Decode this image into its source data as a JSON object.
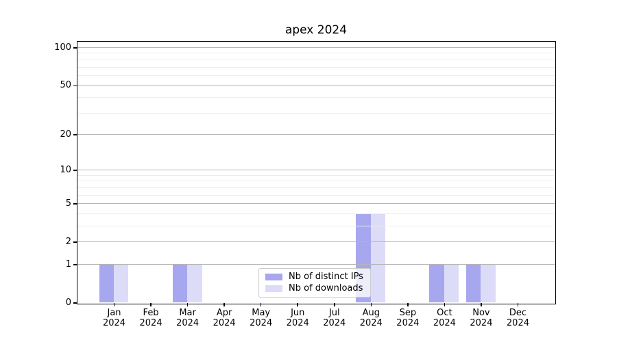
{
  "chart_data": {
    "type": "bar",
    "title": "apex 2024",
    "categories": [
      "Jan 2024",
      "Feb 2024",
      "Mar 2024",
      "Apr 2024",
      "May 2024",
      "Jun 2024",
      "Jul 2024",
      "Aug 2024",
      "Sep 2024",
      "Oct 2024",
      "Nov 2024",
      "Dec 2024"
    ],
    "series": [
      {
        "name": "Nb of distinct IPs",
        "color": "#a7a7ef",
        "values": [
          1,
          0,
          1,
          0,
          0,
          0,
          0,
          4,
          0,
          1,
          1,
          0
        ]
      },
      {
        "name": "Nb of downloads",
        "color": "#dcdcf8",
        "values": [
          1,
          0,
          1,
          0,
          0,
          0,
          0,
          4,
          0,
          1,
          1,
          0
        ]
      }
    ],
    "xlabel": "",
    "ylabel": "",
    "y_axis": {
      "scale": "log1p",
      "ylim": [
        0,
        112
      ],
      "major_ticks": [
        0,
        1,
        2,
        5,
        10,
        20,
        50,
        100
      ],
      "minor_gridlines": [
        3,
        4,
        6,
        7,
        8,
        9,
        30,
        40,
        60,
        70,
        80,
        90
      ]
    },
    "grid": true,
    "legend": {
      "position": "bottom-center"
    },
    "colors": {
      "major_grid": "#b5b5b5",
      "minor_grid": "#ededed",
      "axis": "#000000",
      "background": "#ffffff"
    }
  }
}
